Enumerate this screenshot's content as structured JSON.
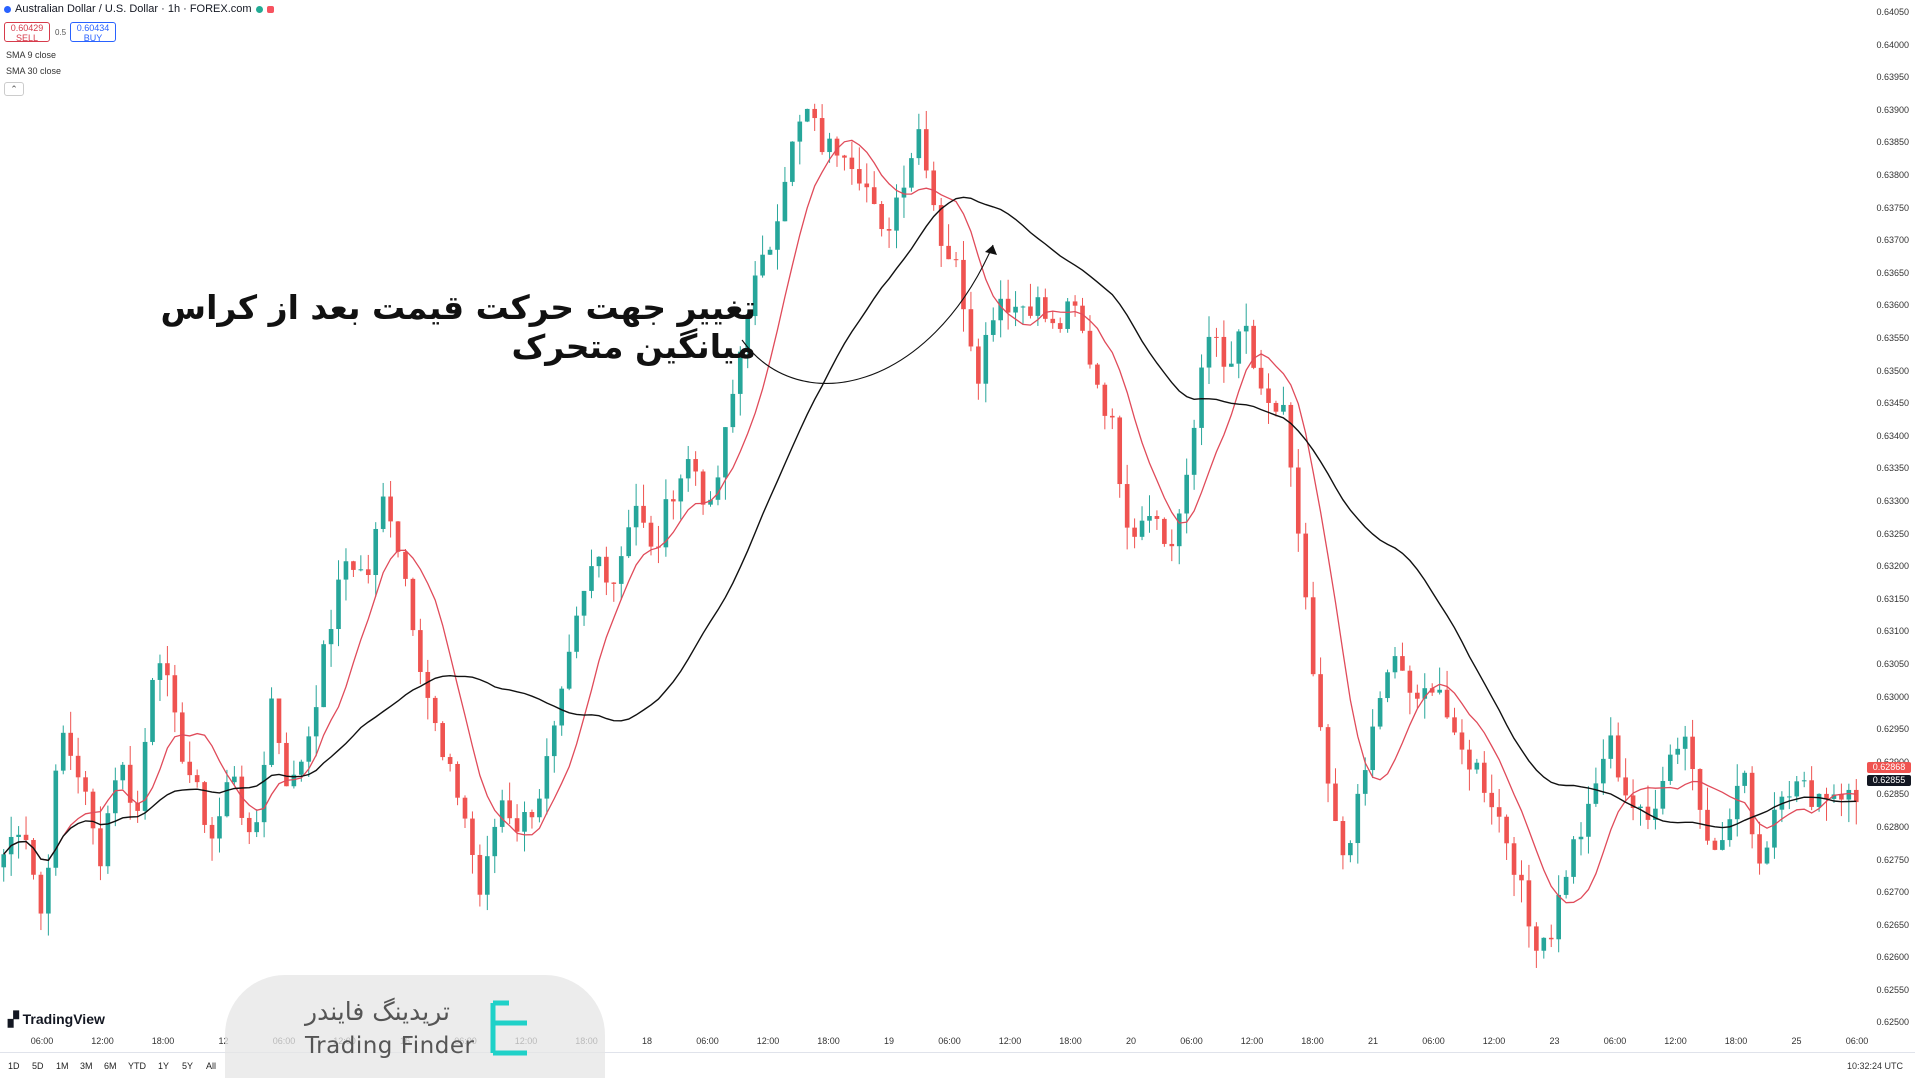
{
  "header": {
    "title": "Australian Dollar / U.S. Dollar · 1h · FOREX.com",
    "sell_price": "0.60429",
    "sell_label": "SELL",
    "spread": "0.5",
    "buy_price": "0.60434",
    "buy_label": "BUY",
    "indicators": [
      "SMA 9 close",
      "SMA 30 close"
    ],
    "collapse_icon": "chevron-up-icon"
  },
  "annotation": {
    "text": "تغییر جهت حرکت قیمت بعد از کراس میانگین متحرک"
  },
  "watermark": {
    "fa": "تریدینگ فایندر",
    "en": "Trading Finder"
  },
  "brand": {
    "tradingview": "TradingView"
  },
  "colors": {
    "up": "#26a69a",
    "down": "#ef5350",
    "sma_fast": "#e04b5a",
    "sma_slow": "#111111",
    "price_badge_red": "#ef5350",
    "price_badge_dark": "#131722"
  },
  "price_badges": [
    "0.62868",
    "0.62855"
  ],
  "bottom": {
    "timeframes": [
      "1D",
      "5D",
      "1M",
      "3M",
      "6M",
      "YTD",
      "1Y",
      "5Y",
      "All"
    ],
    "clock": "10:32:24 UTC"
  },
  "chart_data": {
    "type": "candlestick",
    "y_ticks": [
      "0.64050",
      "0.64000",
      "0.63950",
      "0.63900",
      "0.63850",
      "0.63800",
      "0.63750",
      "0.63700",
      "0.63650",
      "0.63600",
      "0.63550",
      "0.63500",
      "0.63450",
      "0.63400",
      "0.63350",
      "0.63300",
      "0.63250",
      "0.63200",
      "0.63150",
      "0.63100",
      "0.63050",
      "0.63000",
      "0.62950",
      "0.62900",
      "0.62850",
      "0.62800",
      "0.62750",
      "0.62700",
      "0.62650",
      "0.62600",
      "0.62550",
      "0.62500"
    ],
    "x_ticks": [
      "06:00",
      "12:00",
      "18:00",
      "12",
      "06:00",
      "12:00",
      "16",
      "06:00",
      "12:00",
      "18:00",
      "18",
      "06:00",
      "12:00",
      "18:00",
      "19",
      "06:00",
      "12:00",
      "18:00",
      "20",
      "06:00",
      "12:00",
      "18:00",
      "21",
      "06:00",
      "12:00",
      "23",
      "06:00",
      "12:00",
      "18:00",
      "25",
      "06:00"
    ],
    "ylim": [
      0.6249,
      0.6407
    ],
    "close_path": [
      0.6276,
      0.6282,
      0.6266,
      0.6295,
      0.6288,
      0.6275,
      0.6291,
      0.6282,
      0.631,
      0.6295,
      0.6286,
      0.6278,
      0.629,
      0.6275,
      0.63,
      0.6285,
      0.6295,
      0.631,
      0.6322,
      0.6318,
      0.6332,
      0.6319,
      0.6303,
      0.629,
      0.6284,
      0.6269,
      0.6285,
      0.628,
      0.6285,
      0.6296,
      0.6311,
      0.6322,
      0.6318,
      0.6331,
      0.6321,
      0.6332,
      0.6337,
      0.6328,
      0.6343,
      0.6361,
      0.6368,
      0.6382,
      0.639,
      0.6384,
      0.6385,
      0.638,
      0.637,
      0.6379,
      0.6388,
      0.6371,
      0.6365,
      0.635,
      0.6362,
      0.636,
      0.6361,
      0.6356,
      0.636,
      0.6351,
      0.6342,
      0.6325,
      0.633,
      0.6322,
      0.6333,
      0.6358,
      0.6349,
      0.6357,
      0.6343,
      0.6345,
      0.6318,
      0.6292,
      0.6275,
      0.6284,
      0.63,
      0.6306,
      0.6298,
      0.6304,
      0.6292,
      0.629,
      0.6284,
      0.6276,
      0.6263,
      0.6264,
      0.6276,
      0.6282,
      0.6294,
      0.6285,
      0.628,
      0.629,
      0.6295,
      0.6281,
      0.6277,
      0.6289,
      0.6274,
      0.6287,
      0.6286,
      0.6285,
      0.6286,
      0.6284
    ]
  }
}
